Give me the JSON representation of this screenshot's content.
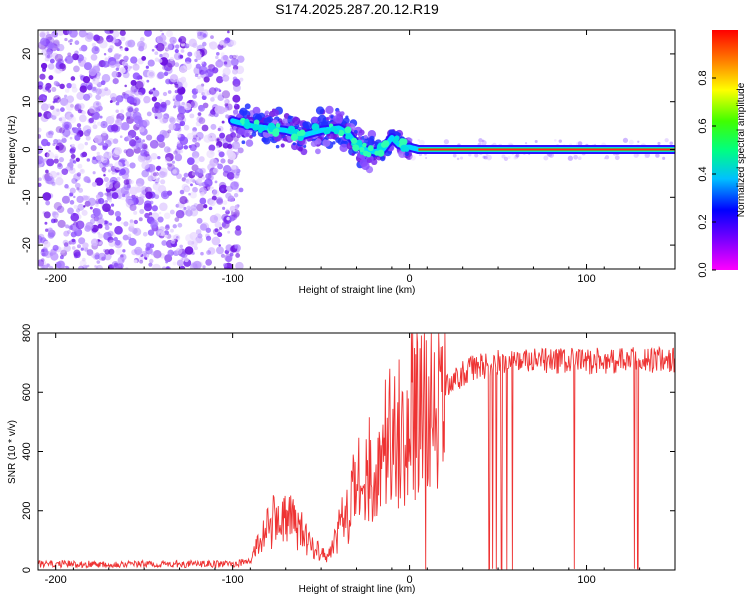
{
  "title": "S174.2025.287.20.12.R19",
  "colors": {
    "snr_line": "#ee3333",
    "axis": "#000000",
    "spectro_low": "#7f00ff",
    "ridge": "#ff2020"
  },
  "colorbar": {
    "label": "Normalized spectral amplitude",
    "ticks": [
      "0.0",
      "0.2",
      "0.4",
      "0.6",
      "0.8"
    ],
    "tick_values": [
      0.0,
      0.2,
      0.4,
      0.6,
      0.8
    ],
    "range": [
      0,
      1
    ]
  },
  "chart_data": [
    {
      "type": "heatmap",
      "name": "spectrogram",
      "xlabel": "Height of straight line (km)",
      "ylabel": "Frequency (Hz)",
      "xlim": [
        -210,
        150
      ],
      "ylim": [
        -25,
        25
      ],
      "x_ticks": [
        -200,
        -100,
        0,
        100
      ],
      "x_tick_labels": [
        "-200",
        "-100",
        "0",
        "100"
      ],
      "y_ticks": [
        -20,
        -10,
        0,
        10,
        20
      ],
      "y_tick_labels": [
        "-20",
        "-10",
        "0",
        "10",
        "20"
      ],
      "ridge_path": [
        [
          -100,
          6
        ],
        [
          -90,
          5
        ],
        [
          -80,
          4.5
        ],
        [
          -70,
          4
        ],
        [
          -60,
          3
        ],
        [
          -50,
          4
        ],
        [
          -40,
          4.5
        ],
        [
          -35,
          3.5
        ],
        [
          -30,
          1
        ],
        [
          -25,
          0
        ],
        [
          -20,
          -0.5
        ],
        [
          -15,
          0
        ],
        [
          -10,
          2.5
        ],
        [
          -6,
          1
        ],
        [
          -2,
          0.5
        ],
        [
          0,
          0.5
        ],
        [
          5,
          0
        ],
        [
          150,
          0
        ]
      ],
      "noise_region_x": [
        -210,
        -95
      ]
    },
    {
      "type": "line",
      "name": "snr",
      "xlabel": "Height of straight line (km)",
      "ylabel": "SNR (10 * v/v)",
      "xlim": [
        -210,
        150
      ],
      "ylim": [
        0,
        800
      ],
      "x_ticks": [
        -200,
        -100,
        0,
        100
      ],
      "x_tick_labels": [
        "-200",
        "-100",
        "0",
        "100"
      ],
      "y_ticks": [
        0,
        200,
        400,
        600,
        800
      ],
      "y_tick_labels": [
        "0",
        "200",
        "400",
        "600",
        "800"
      ],
      "trend": [
        [
          -210,
          20
        ],
        [
          -100,
          20
        ],
        [
          -90,
          30
        ],
        [
          -85,
          100
        ],
        [
          -75,
          180
        ],
        [
          -65,
          160
        ],
        [
          -55,
          80
        ],
        [
          -45,
          50
        ],
        [
          -38,
          150
        ],
        [
          -30,
          260
        ],
        [
          -20,
          330
        ],
        [
          -10,
          420
        ],
        [
          -5,
          430
        ],
        [
          5,
          520
        ],
        [
          15,
          580
        ],
        [
          25,
          640
        ],
        [
          35,
          680
        ],
        [
          50,
          700
        ],
        [
          80,
          705
        ],
        [
          110,
          705
        ],
        [
          150,
          710
        ]
      ],
      "dropouts": [
        45,
        47,
        49,
        52,
        55,
        58,
        93,
        127,
        129,
        9
      ]
    }
  ]
}
